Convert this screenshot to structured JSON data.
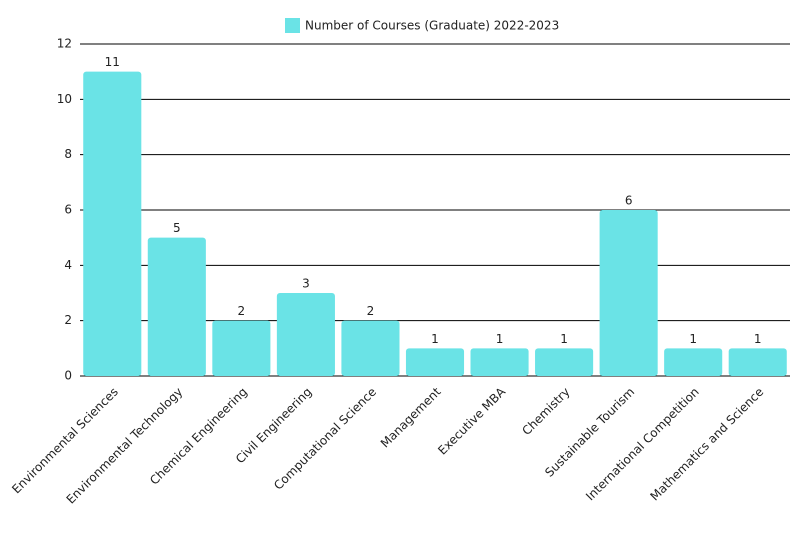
{
  "chart_data": {
    "type": "bar",
    "categories": [
      "Environmental Sciences",
      "Environmental Technology",
      "Chemical Engineering",
      "Civil Engineering",
      "Computational Science",
      "Management",
      "Executive MBA",
      "Chemistry",
      "Sustainable Tourism",
      "International Competition",
      "Mathematics and Science"
    ],
    "series": [
      {
        "name": "Number of Courses (Graduate) 2022-2023",
        "color": "#6ae3e6",
        "values": [
          11,
          5,
          2,
          3,
          2,
          1,
          1,
          1,
          6,
          1,
          1
        ]
      }
    ],
    "ylim": [
      0,
      12
    ],
    "yticks": [
      0,
      2,
      4,
      6,
      8,
      10,
      12
    ],
    "grid": true,
    "legend": "top"
  }
}
